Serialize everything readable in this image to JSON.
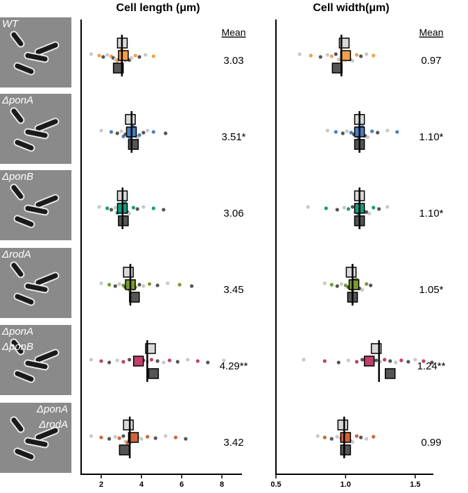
{
  "images": [
    {
      "label": [
        "WT"
      ]
    },
    {
      "label": [
        "ΔponA"
      ]
    },
    {
      "label": [
        "ΔponB"
      ]
    },
    {
      "label": [
        "ΔrodA"
      ]
    },
    {
      "label": [
        "ΔponA",
        "ΔponB"
      ]
    },
    {
      "label": [
        "ΔponA",
        "ΔrodA"
      ]
    }
  ],
  "chart_data": [
    {
      "type": "swarm",
      "title": "Cell length (μm)",
      "mean_header": "Mean",
      "values": [
        3.03,
        3.51,
        3.06,
        3.45,
        4.29,
        3.42
      ],
      "value_labels": [
        "3.03",
        "3.51*",
        "3.06",
        "3.45",
        "4.29**",
        "3.42"
      ],
      "category_colors": [
        "#f4a04a",
        "#4a7fc0",
        "#1a9a80",
        "#7a9a30",
        "#c0406a",
        "#d0643a"
      ],
      "series": [
        {
          "color": "#d9d9d9",
          "values": [
            3.05,
            3.45,
            3.05,
            3.35,
            4.45,
            3.35
          ]
        },
        {
          "color": "category",
          "values": [
            3.1,
            3.5,
            3.05,
            3.45,
            3.85,
            3.6
          ]
        },
        {
          "color": "#555555",
          "values": [
            2.85,
            3.6,
            3.1,
            3.65,
            4.6,
            3.15
          ]
        }
      ],
      "points": [
        [
          1.5,
          1.9,
          2.1,
          2.3,
          2.5,
          2.6,
          2.7,
          2.8,
          2.9,
          3.0,
          3.0,
          3.1,
          3.2,
          3.3,
          3.4,
          3.5,
          3.7,
          3.9,
          4.2,
          4.6
        ],
        [
          2.0,
          2.5,
          2.8,
          3.0,
          3.1,
          3.2,
          3.3,
          3.4,
          3.5,
          3.5,
          3.6,
          3.7,
          3.8,
          3.9,
          4.1,
          4.3,
          4.6,
          5.2
        ],
        [
          1.9,
          2.3,
          2.5,
          2.7,
          2.8,
          2.9,
          3.0,
          3.0,
          3.1,
          3.1,
          3.2,
          3.3,
          3.4,
          3.6,
          3.8,
          4.1,
          4.6,
          5.1
        ],
        [
          2.0,
          2.4,
          2.7,
          2.9,
          3.1,
          3.2,
          3.3,
          3.4,
          3.5,
          3.6,
          3.7,
          3.9,
          4.1,
          4.4,
          4.8,
          5.3,
          5.9,
          6.5
        ],
        [
          1.5,
          2.0,
          2.4,
          2.8,
          3.1,
          3.4,
          3.7,
          3.9,
          4.1,
          4.3,
          4.5,
          4.8,
          5.1,
          5.4,
          5.8,
          6.3,
          6.8,
          7.3,
          8.1
        ],
        [
          1.5,
          2.0,
          2.4,
          2.7,
          2.9,
          3.1,
          3.2,
          3.3,
          3.4,
          3.5,
          3.6,
          3.8,
          4.0,
          4.3,
          4.7,
          5.2,
          5.7,
          6.2
        ]
      ],
      "xlim": [
        1,
        9
      ],
      "xticks": [
        2,
        4,
        6,
        8
      ]
    },
    {
      "type": "swarm",
      "title": "Cell width(μm)",
      "mean_header": "Mean",
      "values": [
        0.97,
        1.1,
        1.1,
        1.05,
        1.24,
        0.99
      ],
      "value_labels": [
        "0.97",
        "1.10*",
        "1.10*",
        "1.05*",
        "1.24**",
        "0.99"
      ],
      "category_colors": [
        "#f4a04a",
        "#4a7fc0",
        "#1a9a80",
        "#7a9a30",
        "#c0406a",
        "#d0643a"
      ],
      "series": [
        {
          "color": "#d9d9d9",
          "values": [
            0.99,
            1.1,
            1.1,
            1.04,
            1.22,
            0.98
          ]
        },
        {
          "color": "category",
          "values": [
            1.0,
            1.1,
            1.1,
            1.06,
            1.17,
            1.0
          ]
        },
        {
          "color": "#555555",
          "values": [
            0.94,
            1.1,
            1.1,
            1.05,
            1.32,
            1.0
          ]
        }
      ],
      "points": [
        [
          0.67,
          0.75,
          0.82,
          0.87,
          0.9,
          0.93,
          0.95,
          0.97,
          0.98,
          1.0,
          1.01,
          1.03,
          1.05,
          1.08,
          1.11,
          1.15,
          1.2
        ],
        [
          0.87,
          0.93,
          0.98,
          1.01,
          1.04,
          1.06,
          1.08,
          1.09,
          1.1,
          1.11,
          1.12,
          1.14,
          1.16,
          1.19,
          1.23,
          1.3,
          1.37
        ],
        [
          0.73,
          0.86,
          0.94,
          0.99,
          1.02,
          1.05,
          1.07,
          1.09,
          1.1,
          1.11,
          1.13,
          1.15,
          1.17,
          1.2,
          1.24,
          1.3
        ],
        [
          0.85,
          0.9,
          0.94,
          0.97,
          1.0,
          1.02,
          1.04,
          1.05,
          1.06,
          1.07,
          1.08,
          1.1,
          1.12,
          1.15,
          1.18
        ],
        [
          0.7,
          0.85,
          0.95,
          1.02,
          1.08,
          1.12,
          1.16,
          1.19,
          1.22,
          1.25,
          1.28,
          1.32,
          1.36,
          1.4,
          1.45,
          1.5,
          1.56,
          1.62
        ],
        [
          0.8,
          0.85,
          0.9,
          0.94,
          0.97,
          0.99,
          1.0,
          1.01,
          1.03,
          1.05,
          1.08,
          1.11,
          1.15,
          1.2
        ]
      ],
      "xlim": [
        0.5,
        1.63
      ],
      "xticks": [
        0.5,
        {
          "value": 1,
          "label": "1.0"
        },
        1.5
      ]
    }
  ]
}
